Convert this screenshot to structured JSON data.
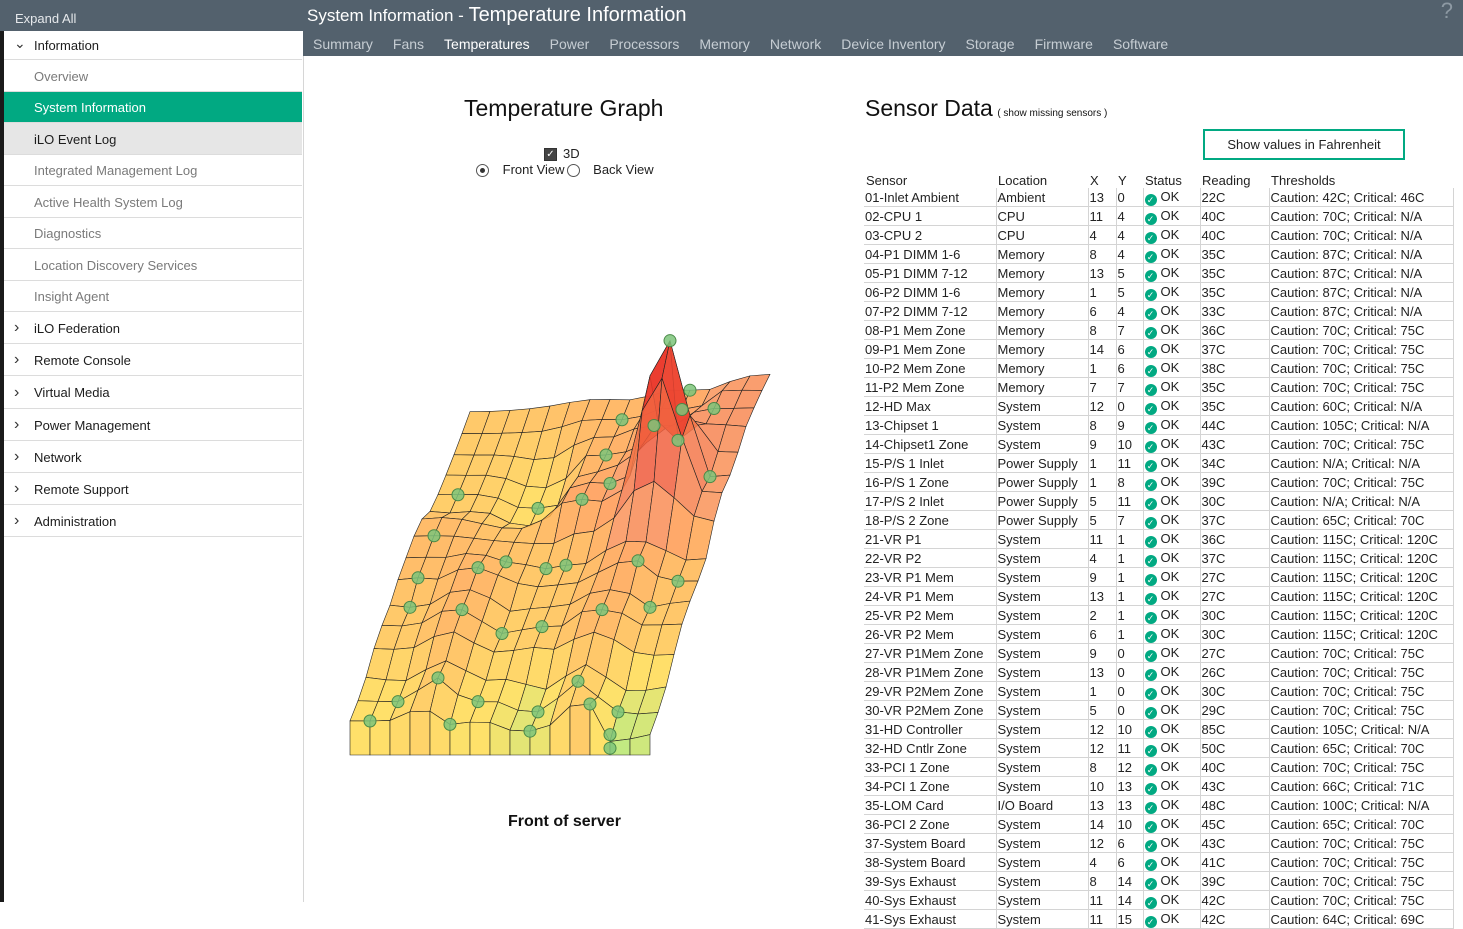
{
  "sidebar": {
    "expand_all": "Expand All",
    "items": [
      {
        "label": "Information",
        "level": "top",
        "expanded": true,
        "state": "normal",
        "icon": "chevron-down-icon"
      },
      {
        "label": "Overview",
        "level": "sub",
        "state": "normal"
      },
      {
        "label": "System Information",
        "level": "sub",
        "state": "active"
      },
      {
        "label": "iLO Event Log",
        "level": "sub",
        "state": "hover"
      },
      {
        "label": "Integrated Management Log",
        "level": "sub",
        "state": "normal"
      },
      {
        "label": "Active Health System Log",
        "level": "sub",
        "state": "normal"
      },
      {
        "label": "Diagnostics",
        "level": "sub",
        "state": "normal"
      },
      {
        "label": "Location Discovery Services",
        "level": "sub",
        "state": "normal"
      },
      {
        "label": "Insight Agent",
        "level": "sub",
        "state": "normal"
      },
      {
        "label": "iLO Federation",
        "level": "top",
        "expanded": false,
        "state": "normal",
        "icon": "chevron-right-icon"
      },
      {
        "label": "Remote Console",
        "level": "top",
        "expanded": false,
        "state": "normal",
        "icon": "chevron-right-icon"
      },
      {
        "label": "Virtual Media",
        "level": "top",
        "expanded": false,
        "state": "normal",
        "icon": "chevron-right-icon"
      },
      {
        "label": "Power Management",
        "level": "top",
        "expanded": false,
        "state": "normal",
        "icon": "chevron-right-icon"
      },
      {
        "label": "Network",
        "level": "top",
        "expanded": false,
        "state": "normal",
        "icon": "chevron-right-icon"
      },
      {
        "label": "Remote Support",
        "level": "top",
        "expanded": false,
        "state": "normal",
        "icon": "chevron-right-icon"
      },
      {
        "label": "Administration",
        "level": "top",
        "expanded": false,
        "state": "normal",
        "icon": "chevron-right-icon"
      }
    ]
  },
  "header": {
    "title_prefix": "System Information - ",
    "title_main": "Temperature Information",
    "help_icon": "question-mark-icon",
    "help_glyph": "?",
    "tabs": [
      {
        "label": "Summary",
        "selected": false
      },
      {
        "label": "Fans",
        "selected": false
      },
      {
        "label": "Temperatures",
        "selected": true
      },
      {
        "label": "Power",
        "selected": false
      },
      {
        "label": "Processors",
        "selected": false
      },
      {
        "label": "Memory",
        "selected": false
      },
      {
        "label": "Network",
        "selected": false
      },
      {
        "label": "Device Inventory",
        "selected": false
      },
      {
        "label": "Storage",
        "selected": false
      },
      {
        "label": "Firmware",
        "selected": false
      },
      {
        "label": "Software",
        "selected": false
      }
    ]
  },
  "graph": {
    "title": "Temperature Graph",
    "option_3d": "3D",
    "option_3d_checked": true,
    "front_view": "Front View",
    "back_view": "Back View",
    "selected_view": "front",
    "caption": "Front of server"
  },
  "sensor": {
    "title": "Sensor Data",
    "show_missing": "( show missing sensors )",
    "fahrenheit_button": "Show values in Fahrenheit",
    "ok_icon": "check-circle-icon",
    "columns": [
      "Sensor",
      "Location",
      "X",
      "Y",
      "Status",
      "Reading",
      "Thresholds"
    ],
    "rows": [
      [
        "01-Inlet Ambient",
        "Ambient",
        "13",
        "0",
        "OK",
        "22C",
        "Caution: 42C; Critical: 46C"
      ],
      [
        "02-CPU 1",
        "CPU",
        "11",
        "4",
        "OK",
        "40C",
        "Caution: 70C; Critical: N/A"
      ],
      [
        "03-CPU 2",
        "CPU",
        "4",
        "4",
        "OK",
        "40C",
        "Caution: 70C; Critical: N/A"
      ],
      [
        "04-P1 DIMM 1-6",
        "Memory",
        "8",
        "4",
        "OK",
        "35C",
        "Caution: 87C; Critical: N/A"
      ],
      [
        "05-P1 DIMM 7-12",
        "Memory",
        "13",
        "5",
        "OK",
        "35C",
        "Caution: 87C; Critical: N/A"
      ],
      [
        "06-P2 DIMM 1-6",
        "Memory",
        "1",
        "5",
        "OK",
        "35C",
        "Caution: 87C; Critical: N/A"
      ],
      [
        "07-P2 DIMM 7-12",
        "Memory",
        "6",
        "4",
        "OK",
        "33C",
        "Caution: 87C; Critical: N/A"
      ],
      [
        "08-P1 Mem Zone",
        "Memory",
        "8",
        "7",
        "OK",
        "36C",
        "Caution: 70C; Critical: 75C"
      ],
      [
        "09-P1 Mem Zone",
        "Memory",
        "14",
        "6",
        "OK",
        "37C",
        "Caution: 70C; Critical: 75C"
      ],
      [
        "10-P2 Mem Zone",
        "Memory",
        "1",
        "6",
        "OK",
        "38C",
        "Caution: 70C; Critical: 75C"
      ],
      [
        "11-P2 Mem Zone",
        "Memory",
        "7",
        "7",
        "OK",
        "35C",
        "Caution: 70C; Critical: 75C"
      ],
      [
        "12-HD Max",
        "System",
        "12",
        "0",
        "OK",
        "35C",
        "Caution: 60C; Critical: N/A"
      ],
      [
        "13-Chipset 1",
        "System",
        "8",
        "9",
        "OK",
        "44C",
        "Caution: 105C; Critical: N/A"
      ],
      [
        "14-Chipset1 Zone",
        "System",
        "9",
        "10",
        "OK",
        "43C",
        "Caution: 70C; Critical: 75C"
      ],
      [
        "15-P/S 1 Inlet",
        "Power Supply",
        "1",
        "11",
        "OK",
        "34C",
        "Caution: N/A; Critical: N/A"
      ],
      [
        "16-P/S 1 Zone",
        "Power Supply",
        "1",
        "8",
        "OK",
        "39C",
        "Caution: 70C; Critical: 75C"
      ],
      [
        "17-P/S 2 Inlet",
        "Power Supply",
        "5",
        "11",
        "OK",
        "30C",
        "Caution: N/A; Critical: N/A"
      ],
      [
        "18-P/S 2 Zone",
        "Power Supply",
        "5",
        "7",
        "OK",
        "37C",
        "Caution: 65C; Critical: 70C"
      ],
      [
        "21-VR P1",
        "System",
        "11",
        "1",
        "OK",
        "36C",
        "Caution: 115C; Critical: 120C"
      ],
      [
        "22-VR P2",
        "System",
        "4",
        "1",
        "OK",
        "37C",
        "Caution: 115C; Critical: 120C"
      ],
      [
        "23-VR P1 Mem",
        "System",
        "9",
        "1",
        "OK",
        "27C",
        "Caution: 115C; Critical: 120C"
      ],
      [
        "24-VR P1 Mem",
        "System",
        "13",
        "1",
        "OK",
        "27C",
        "Caution: 115C; Critical: 120C"
      ],
      [
        "25-VR P2 Mem",
        "System",
        "2",
        "1",
        "OK",
        "30C",
        "Caution: 115C; Critical: 120C"
      ],
      [
        "26-VR P2 Mem",
        "System",
        "6",
        "1",
        "OK",
        "30C",
        "Caution: 115C; Critical: 120C"
      ],
      [
        "27-VR P1Mem Zone",
        "System",
        "9",
        "0",
        "OK",
        "27C",
        "Caution: 70C; Critical: 75C"
      ],
      [
        "28-VR P1Mem Zone",
        "System",
        "13",
        "0",
        "OK",
        "26C",
        "Caution: 70C; Critical: 75C"
      ],
      [
        "29-VR P2Mem Zone",
        "System",
        "1",
        "0",
        "OK",
        "30C",
        "Caution: 70C; Critical: 75C"
      ],
      [
        "30-VR P2Mem Zone",
        "System",
        "5",
        "0",
        "OK",
        "29C",
        "Caution: 70C; Critical: 75C"
      ],
      [
        "31-HD Controller",
        "System",
        "12",
        "10",
        "OK",
        "85C",
        "Caution: 105C; Critical: N/A"
      ],
      [
        "32-HD Cntlr Zone",
        "System",
        "12",
        "11",
        "OK",
        "50C",
        "Caution: 65C; Critical: 70C"
      ],
      [
        "33-PCI 1 Zone",
        "System",
        "8",
        "12",
        "OK",
        "40C",
        "Caution: 70C; Critical: 75C"
      ],
      [
        "34-PCI 1 Zone",
        "System",
        "10",
        "13",
        "OK",
        "43C",
        "Caution: 66C; Critical: 71C"
      ],
      [
        "35-LOM Card",
        "I/O Board",
        "13",
        "13",
        "OK",
        "48C",
        "Caution: 100C; Critical: N/A"
      ],
      [
        "36-PCI 2 Zone",
        "System",
        "14",
        "10",
        "OK",
        "45C",
        "Caution: 65C; Critical: 70C"
      ],
      [
        "37-System Board",
        "System",
        "12",
        "6",
        "OK",
        "43C",
        "Caution: 70C; Critical: 75C"
      ],
      [
        "38-System Board",
        "System",
        "4",
        "6",
        "OK",
        "41C",
        "Caution: 70C; Critical: 75C"
      ],
      [
        "39-Sys Exhaust",
        "System",
        "8",
        "14",
        "OK",
        "39C",
        "Caution: 70C; Critical: 75C"
      ],
      [
        "40-Sys Exhaust",
        "System",
        "11",
        "14",
        "OK",
        "42C",
        "Caution: 70C; Critical: 75C"
      ],
      [
        "41-Sys Exhaust",
        "System",
        "11",
        "15",
        "OK",
        "42C",
        "Caution: 64C; Critical: 69C"
      ]
    ]
  }
}
